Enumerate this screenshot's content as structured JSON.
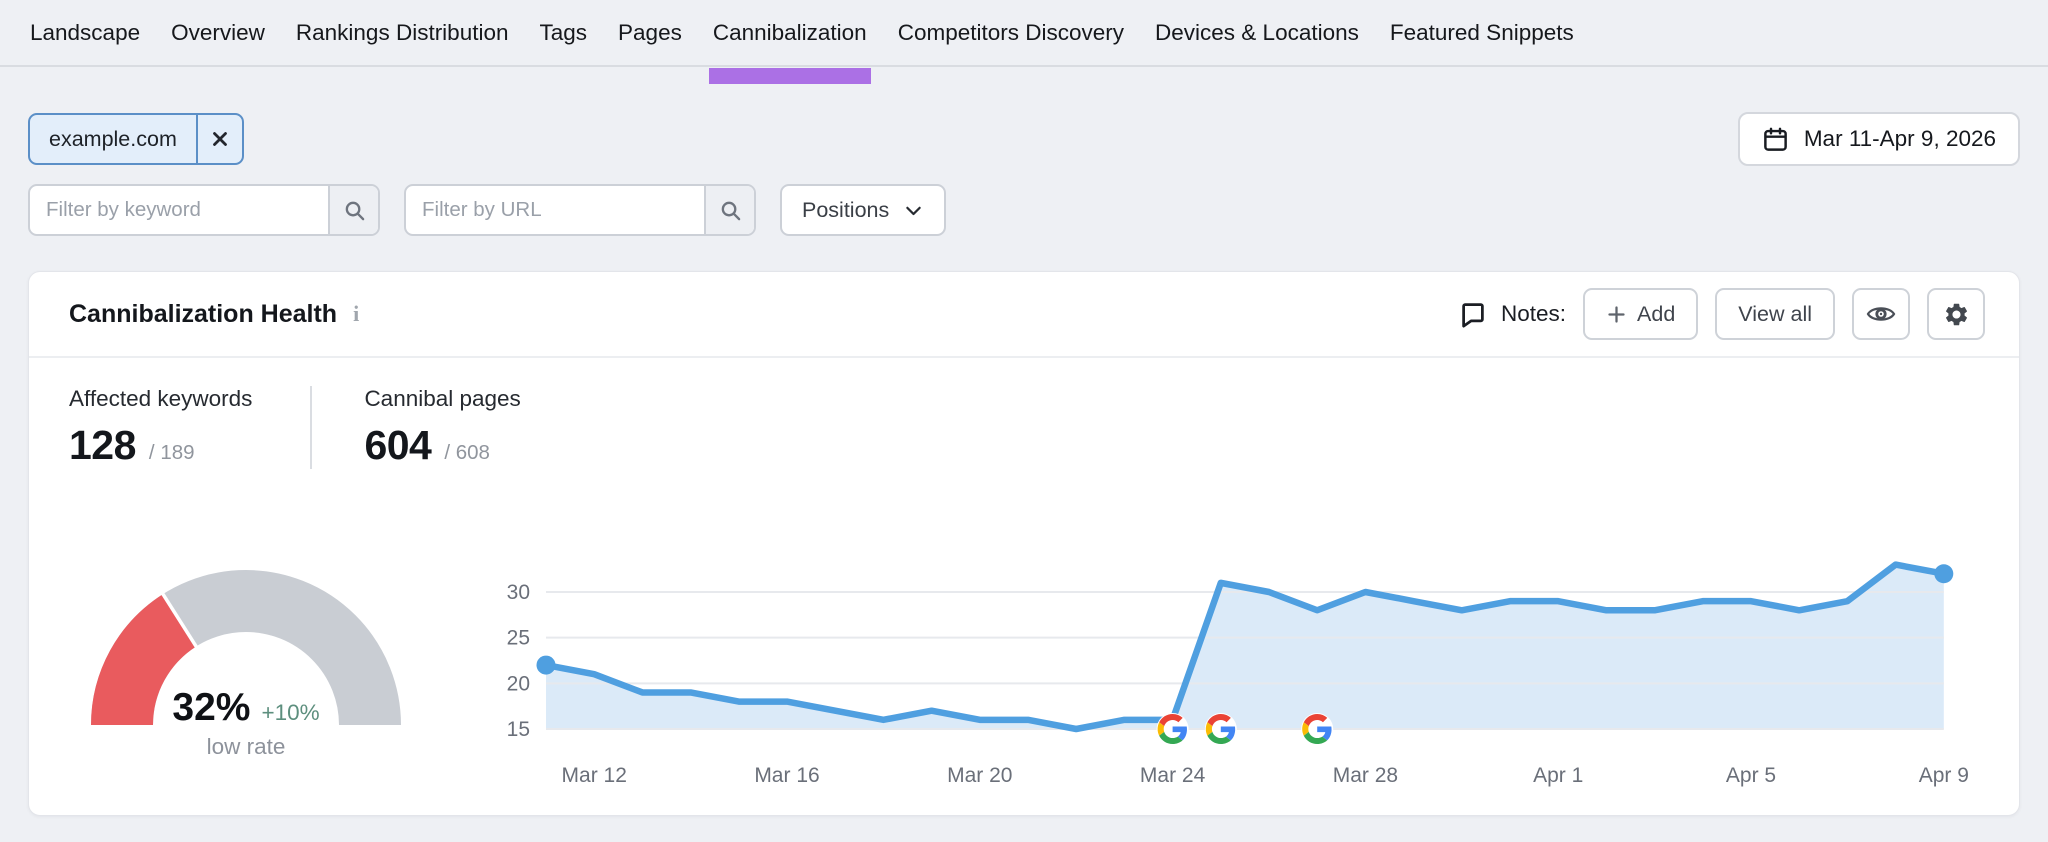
{
  "theme": {
    "accent_purple": "#ab70e5",
    "chip_border_blue": "#5b8fc7",
    "chip_bg_blue": "#e3eefa",
    "delta_green": "#5d8f7e",
    "line_blue": "#4f9fe0",
    "area_fill_blue": "#dbeaf8",
    "gauge_red": "#e95b5e",
    "gauge_gray": "#c9cdd3"
  },
  "nav": {
    "tabs": [
      {
        "label": "Landscape",
        "active": false
      },
      {
        "label": "Overview",
        "active": false
      },
      {
        "label": "Rankings Distribution",
        "active": false
      },
      {
        "label": "Tags",
        "active": false
      },
      {
        "label": "Pages",
        "active": false
      },
      {
        "label": "Cannibalization",
        "active": true
      },
      {
        "label": "Competitors Discovery",
        "active": false
      },
      {
        "label": "Devices & Locations",
        "active": false
      },
      {
        "label": "Featured Snippets",
        "active": false
      }
    ]
  },
  "filters": {
    "chip_label": "example.com",
    "keyword_placeholder": "Filter by keyword",
    "url_placeholder": "Filter by URL",
    "positions_label": "Positions",
    "date_range": "Mar 11-Apr 9, 2026"
  },
  "card": {
    "title": "Cannibalization Health",
    "info_glyph": "i",
    "notes": {
      "label": "Notes:",
      "add_label": "Add",
      "view_all_label": "View all"
    },
    "stats": [
      {
        "label": "Affected keywords",
        "value": "128",
        "total": "/ 189"
      },
      {
        "label": "Cannibal pages",
        "value": "604",
        "total": "/ 608"
      }
    ]
  },
  "chart_data": [
    {
      "type": "area",
      "x": [
        "Mar 11",
        "Mar 12",
        "Mar 13",
        "Mar 14",
        "Mar 15",
        "Mar 16",
        "Mar 17",
        "Mar 18",
        "Mar 19",
        "Mar 20",
        "Mar 21",
        "Mar 22",
        "Mar 23",
        "Mar 24",
        "Mar 25",
        "Mar 26",
        "Mar 27",
        "Mar 28",
        "Mar 29",
        "Mar 30",
        "Mar 31",
        "Apr 1",
        "Apr 2",
        "Apr 3",
        "Apr 4",
        "Apr 5",
        "Apr 6",
        "Apr 7",
        "Apr 8",
        "Apr 9"
      ],
      "values": [
        22,
        21,
        19,
        19,
        18,
        18,
        17,
        16,
        17,
        16,
        16,
        15,
        16,
        16,
        31,
        30,
        28,
        30,
        29,
        28,
        29,
        29,
        28,
        28,
        29,
        29,
        28,
        29,
        33,
        32
      ],
      "ylim": [
        15,
        33.5
      ],
      "yticks": [
        15,
        20,
        25,
        30
      ],
      "xtick_labels": [
        "Mar 12",
        "Mar 16",
        "Mar 20",
        "Mar 24",
        "Mar 28",
        "Apr 1",
        "Apr 5",
        "Apr 9"
      ],
      "xtick_indices": [
        1,
        5,
        9,
        13,
        17,
        21,
        25,
        29
      ],
      "grid": true,
      "markers": [
        {
          "x": "Mar 24",
          "icon": "google-update-icon"
        },
        {
          "x": "Mar 25",
          "icon": "google-update-icon"
        },
        {
          "x": "Mar 27",
          "icon": "google-update-icon"
        }
      ],
      "endpoint_dots": [
        0,
        29
      ],
      "colors": {
        "line": "#4f9fe0",
        "fill": "#dbeaf8"
      }
    },
    {
      "type": "gauge",
      "value_percent": 32,
      "value_label": "32%",
      "delta_label": "+10%",
      "caption": "low rate",
      "range": [
        0,
        100
      ],
      "colors": {
        "filled": "#e95b5e",
        "rest": "#c9cdd3"
      }
    }
  ]
}
